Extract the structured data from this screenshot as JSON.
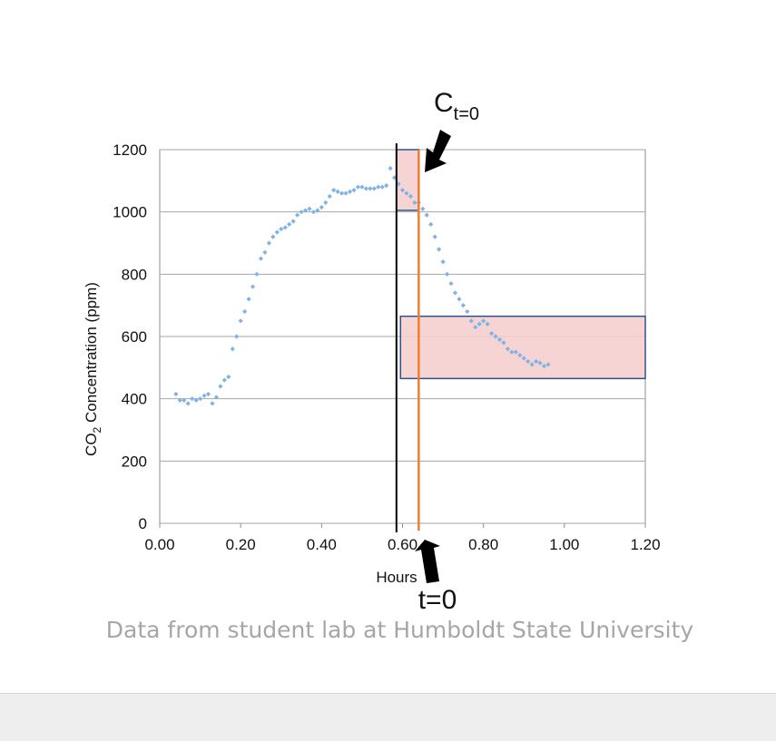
{
  "chart_data": {
    "type": "scatter",
    "xlabel": "Hours",
    "ylabel_main": "CO",
    "ylabel_sub": "2",
    "ylabel_rest": " Concentration (ppm)",
    "xlim": [
      0,
      1.2
    ],
    "ylim": [
      0,
      1200
    ],
    "xticks": [
      "0.00",
      "0.20",
      "0.40",
      "0.60",
      "0.80",
      "1.00",
      "1.20"
    ],
    "yticks": [
      "0",
      "200",
      "400",
      "600",
      "800",
      "1000",
      "1200"
    ],
    "grid": "horizontal",
    "series": [
      {
        "color": "#7fb2e5",
        "x": [
          0.04,
          0.05,
          0.06,
          0.07,
          0.08,
          0.09,
          0.1,
          0.11,
          0.12,
          0.13,
          0.14,
          0.15,
          0.16,
          0.17,
          0.18,
          0.19,
          0.2,
          0.21,
          0.22,
          0.23,
          0.24,
          0.25,
          0.26,
          0.27,
          0.28,
          0.29,
          0.3,
          0.31,
          0.32,
          0.33,
          0.34,
          0.35,
          0.36,
          0.37,
          0.38,
          0.39,
          0.4,
          0.41,
          0.42,
          0.43,
          0.44,
          0.45,
          0.46,
          0.47,
          0.48,
          0.49,
          0.5,
          0.51,
          0.52,
          0.53,
          0.54,
          0.55,
          0.56,
          0.57,
          0.58,
          0.59,
          0.6,
          0.61,
          0.62,
          0.63,
          0.64,
          0.65,
          0.66,
          0.67,
          0.68,
          0.69,
          0.7,
          0.71,
          0.72,
          0.73,
          0.74,
          0.75,
          0.76,
          0.77,
          0.78,
          0.79,
          0.8,
          0.81,
          0.82,
          0.83,
          0.84,
          0.85,
          0.86,
          0.87,
          0.88,
          0.89,
          0.9,
          0.91,
          0.92,
          0.93,
          0.94,
          0.95,
          0.96
        ],
        "y": [
          415,
          395,
          395,
          385,
          400,
          395,
          400,
          410,
          415,
          385,
          405,
          440,
          460,
          470,
          560,
          600,
          650,
          680,
          720,
          760,
          800,
          850,
          870,
          900,
          920,
          935,
          945,
          950,
          960,
          970,
          990,
          1000,
          1005,
          1010,
          1000,
          1005,
          1015,
          1030,
          1050,
          1070,
          1065,
          1060,
          1060,
          1065,
          1070,
          1080,
          1080,
          1075,
          1075,
          1075,
          1080,
          1080,
          1085,
          1140,
          1110,
          1090,
          1070,
          1060,
          1050,
          1030,
          1030,
          1010,
          990,
          960,
          920,
          880,
          840,
          800,
          770,
          740,
          720,
          700,
          680,
          650,
          630,
          640,
          650,
          640,
          610,
          600,
          590,
          580,
          560,
          550,
          550,
          540,
          530,
          520,
          510,
          520,
          515,
          505,
          510
        ]
      }
    ],
    "annotations": {
      "ct0_main": "C",
      "ct0_sub": "t=0",
      "t0": "t=0",
      "vline_black_x": 0.585,
      "vline_orange_x": 0.64,
      "box_top": {
        "x": [
          0.585,
          0.64
        ],
        "y": [
          1005,
          1200
        ]
      },
      "box_bottom": {
        "x": [
          0.595,
          1.2
        ],
        "y": [
          465,
          665
        ]
      }
    },
    "colors": {
      "box_fill": "#f4cccc",
      "box_stroke": "#2f528f",
      "orange_line": "#ed7d31",
      "grid": "#a6a6a6"
    }
  },
  "caption": "Data from student lab at Humboldt State University"
}
